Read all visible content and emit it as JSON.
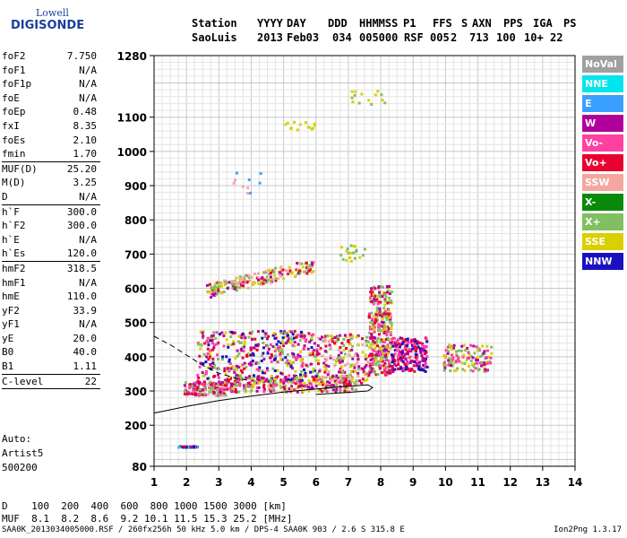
{
  "logo": {
    "line1": "Lowell",
    "line2": "DIGISONDE"
  },
  "header": {
    "labels": [
      "Station",
      "YYYY",
      "DAY",
      "DDD",
      "HHMMSS",
      "P1",
      "FFS",
      "S",
      "AXN",
      "PPS",
      "IGA",
      "PS"
    ],
    "values": [
      "SaoLuis",
      "2013",
      "Feb03",
      "034",
      "005000",
      "RSF",
      "005",
      "2",
      "713",
      "100",
      "10+",
      "22"
    ]
  },
  "params": [
    {
      "k": "foF2",
      "v": "7.750"
    },
    {
      "k": "foF1",
      "v": "N/A"
    },
    {
      "k": "foF1p",
      "v": "N/A"
    },
    {
      "k": "foE",
      "v": "N/A"
    },
    {
      "k": "foEp",
      "v": "0.48"
    },
    {
      "k": "fxI",
      "v": "8.35"
    },
    {
      "k": "foEs",
      "v": "2.10"
    },
    {
      "k": "fmin",
      "v": "1.70",
      "sep": true
    },
    {
      "k": "MUF(D)",
      "v": "25.20"
    },
    {
      "k": "M(D)",
      "v": "3.25"
    },
    {
      "k": "D",
      "v": "N/A",
      "sep": true
    },
    {
      "k": "h`F",
      "v": "300.0"
    },
    {
      "k": "h`F2",
      "v": "300.0"
    },
    {
      "k": "h`E",
      "v": "N/A"
    },
    {
      "k": "h`Es",
      "v": "120.0",
      "sep": true
    },
    {
      "k": "hmF2",
      "v": "318.5"
    },
    {
      "k": "hmF1",
      "v": "N/A"
    },
    {
      "k": "hmE",
      "v": "110.0"
    },
    {
      "k": "yF2",
      "v": "33.9"
    },
    {
      "k": "yF1",
      "v": "N/A"
    },
    {
      "k": "yE",
      "v": "20.0"
    },
    {
      "k": "B0",
      "v": "40.0"
    },
    {
      "k": "B1",
      "v": "1.11",
      "sep": true
    },
    {
      "k": "C-level",
      "v": "22",
      "sep": true
    }
  ],
  "auto": {
    "line1": "Auto:",
    "line2": "Artist5",
    "line3": "500200"
  },
  "muf_table": {
    "row1_label": "D",
    "row1": "100  200  400  600  800 1000 1500 3000 [km]",
    "row2_label": "MUF",
    "row2": "8.1  8.2  8.6  9.2 10.1 11.5 15.3 25.2 [MHz]"
  },
  "footer": {
    "left": "SAA0K_2013034005000.RSF / 260fx256h 50 kHz 5.0 km / DPS-4 SAA0K 903 / 2.6 S 315.8 E",
    "right": "Ion2Png 1.3.17"
  },
  "legend": [
    {
      "label": "NoVal",
      "color": "#a0a0a0"
    },
    {
      "label": "NNE",
      "color": "#00e5ee"
    },
    {
      "label": "E",
      "color": "#3aa0ff"
    },
    {
      "label": "W",
      "color": "#b0009c"
    },
    {
      "label": "Vo-",
      "color": "#ff40a0"
    },
    {
      "label": "Vo+",
      "color": "#e8002e"
    },
    {
      "label": "SSW",
      "color": "#f4a6a0"
    },
    {
      "label": "X-",
      "color": "#0a8a0a"
    },
    {
      "label": "X+",
      "color": "#80c060"
    },
    {
      "label": "SSE",
      "color": "#d8d000"
    },
    {
      "label": "NNW",
      "color": "#1a10c0"
    }
  ],
  "chart_data": {
    "type": "scatter",
    "xlim": [
      1,
      14
    ],
    "ylim": [
      80,
      1280
    ],
    "xticks": [
      1,
      2,
      3,
      4,
      5,
      6,
      7,
      8,
      9,
      10,
      11,
      12,
      13,
      14
    ],
    "yticks": [
      80,
      200,
      300,
      400,
      500,
      600,
      700,
      800,
      900,
      1000,
      1100,
      1280
    ],
    "grid": true,
    "clusters": [
      {
        "f0": 1.72,
        "f1": 2.3,
        "h0": 138,
        "h1": 142,
        "colors": [
          "#e8002e",
          "#b0009c",
          "#00e5ee",
          "#1a10c0"
        ],
        "n": 40
      },
      {
        "f0": 1.9,
        "f1": 3.2,
        "h0": 290,
        "h1": 330,
        "colors": [
          "#e8002e",
          "#b0009c",
          "#80c060",
          "#ff40a0",
          "#f4a6a0"
        ],
        "n": 160
      },
      {
        "f0": 3.0,
        "f1": 7.2,
        "h0": 300,
        "h1": 345,
        "colors": [
          "#b0009c",
          "#e8002e",
          "#ff40a0",
          "#80c060",
          "#d8d000"
        ],
        "n": 260
      },
      {
        "f0": 2.3,
        "f1": 6.0,
        "h0": 330,
        "h1": 480,
        "colors": [
          "#b0009c",
          "#e8002e",
          "#ff40a0",
          "#1a10c0",
          "#d8d000",
          "#80c060"
        ],
        "n": 420
      },
      {
        "f0": 6.0,
        "f1": 7.6,
        "h0": 320,
        "h1": 470,
        "colors": [
          "#b0009c",
          "#e8002e",
          "#d8d000",
          "#80c060",
          "#f4a6a0"
        ],
        "n": 200
      },
      {
        "f0": 7.6,
        "f1": 8.3,
        "h0": 350,
        "h1": 610,
        "colors": [
          "#b0009c",
          "#e8002e",
          "#ff40a0",
          "#d8d000",
          "#80c060"
        ],
        "n": 320
      },
      {
        "f0": 8.3,
        "f1": 9.4,
        "h0": 360,
        "h1": 460,
        "colors": [
          "#b0009c",
          "#e8002e",
          "#ff40a0",
          "#1a10c0"
        ],
        "n": 200
      },
      {
        "f0": 9.9,
        "f1": 11.4,
        "h0": 360,
        "h1": 440,
        "colors": [
          "#b0009c",
          "#d8d000",
          "#80c060",
          "#ff40a0"
        ],
        "n": 120
      },
      {
        "f0": 2.6,
        "f1": 5.9,
        "h0": 575,
        "h1": 690,
        "colors": [
          "#80c060",
          "#d8d000",
          "#e8002e",
          "#b0009c",
          "#f4a6a0"
        ],
        "n": 200,
        "slope": true
      },
      {
        "f0": 6.5,
        "f1": 7.5,
        "h0": 680,
        "h1": 730,
        "colors": [
          "#d8d000",
          "#80c060"
        ],
        "n": 20
      },
      {
        "f0": 5.0,
        "f1": 6.0,
        "h0": 1060,
        "h1": 1090,
        "colors": [
          "#d8d000"
        ],
        "n": 14
      },
      {
        "f0": 7.0,
        "f1": 8.1,
        "h0": 1140,
        "h1": 1180,
        "colors": [
          "#d8d000",
          "#80c060"
        ],
        "n": 14
      },
      {
        "f0": 3.4,
        "f1": 4.4,
        "h0": 880,
        "h1": 950,
        "colors": [
          "#f4a6a0",
          "#3aa0ff"
        ],
        "n": 10
      }
    ],
    "o_trace": [
      [
        1.0,
        235
      ],
      [
        1.5,
        245
      ],
      [
        2.0,
        255
      ],
      [
        3.0,
        272
      ],
      [
        4.0,
        285
      ],
      [
        5.0,
        297
      ],
      [
        6.0,
        306
      ],
      [
        7.0,
        314
      ],
      [
        7.6,
        318
      ],
      [
        7.75,
        310
      ],
      [
        7.6,
        300
      ],
      [
        7.0,
        296
      ],
      [
        6.0,
        290
      ]
    ],
    "x_trace": [
      [
        1.0,
        460
      ],
      [
        1.5,
        435
      ],
      [
        2.0,
        405
      ],
      [
        2.5,
        375
      ],
      [
        3.0,
        352
      ],
      [
        3.5,
        338
      ],
      [
        4.0,
        330
      ]
    ]
  }
}
